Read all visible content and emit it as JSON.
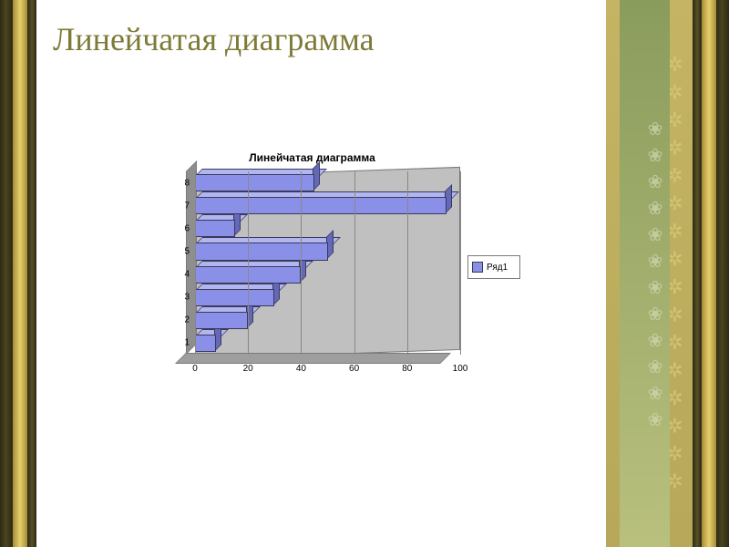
{
  "slide": {
    "title": "Линейчатая диаграмма",
    "title_color": "#7e7b37",
    "title_fontsize": 36,
    "background": "#ffffff"
  },
  "frame": {
    "dark_strip_color": "#3c371b",
    "gold_strip_color": "#cbb85a",
    "ribbon_outer_color": "#c4b463",
    "ribbon_inner_color": "#8a9c5c"
  },
  "chart": {
    "type": "bar-horizontal-3d",
    "title": "Линейчатая диаграмма",
    "title_fontsize": 12,
    "plot_background": "#c0c0c0",
    "floor_color": "#9e9e9e",
    "wall_color": "#8e8e8e",
    "grid_color": "#888888",
    "categories": [
      "1",
      "2",
      "3",
      "4",
      "5",
      "6",
      "7",
      "8"
    ],
    "values": [
      8,
      20,
      30,
      40,
      50,
      15,
      95,
      45
    ],
    "bar_color": "#8a90e8",
    "bar_top_color": "#b2b6f0",
    "bar_side_color": "#6468b8",
    "bar_border_color": "#3a3a5a",
    "xlim": [
      0,
      100
    ],
    "xtick_step": 20,
    "x_ticks": [
      "0",
      "20",
      "40",
      "60",
      "80",
      "100"
    ],
    "label_fontsize": 10,
    "legend": {
      "label": "Ряд1",
      "swatch_color": "#8a90e8",
      "border_color": "#7a7a7a",
      "background": "#ffffff"
    }
  }
}
